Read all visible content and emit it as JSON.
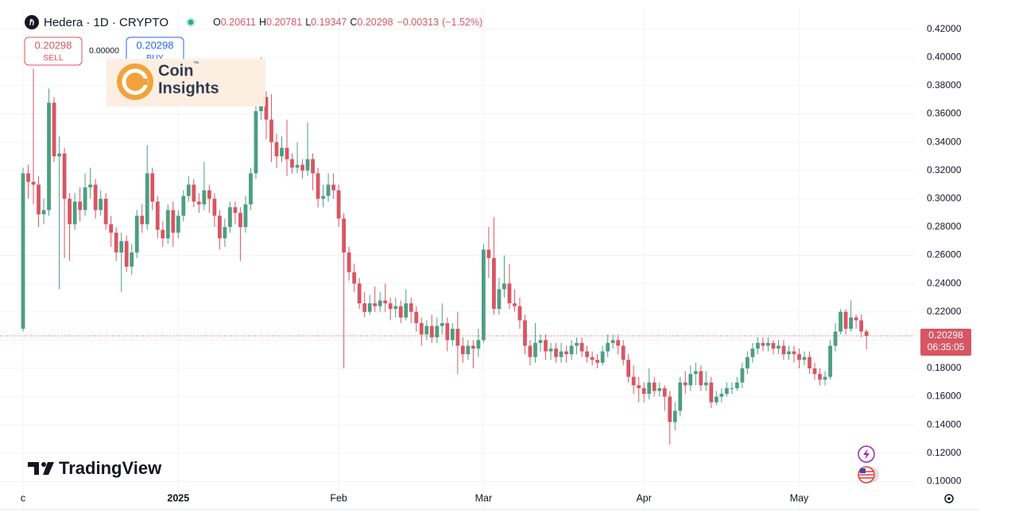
{
  "header": {
    "symbol": "Hedera · 1D · CRYPTO",
    "ohlc_labels": [
      "O",
      "H",
      "L",
      "C"
    ],
    "change": "−0.00313",
    "change_pct": "(−1.52%)"
  },
  "trade": {
    "sell": "SELL",
    "buy": "BUY",
    "spread": "0.00000"
  },
  "watermark": {
    "brand_line1": "Coin",
    "brand_line2": "Insights",
    "trademark": "™",
    "platform": "TradingView"
  },
  "chart_data": {
    "type": "candlestick",
    "categories": [
      "c",
      null,
      null,
      null,
      null,
      null,
      null,
      null,
      null,
      null,
      null,
      null,
      null,
      null,
      null,
      null,
      null,
      null,
      null,
      null,
      null,
      null,
      null,
      null,
      null,
      null,
      null,
      null,
      null,
      null,
      "2025",
      null,
      null,
      null,
      null,
      null,
      null,
      null,
      null,
      null,
      null,
      null,
      null,
      null,
      null,
      null,
      null,
      null,
      null,
      null,
      null,
      null,
      null,
      null,
      null,
      null,
      null,
      null,
      null,
      null,
      null,
      "Feb",
      null,
      null,
      null,
      null,
      null,
      null,
      null,
      null,
      null,
      null,
      null,
      null,
      null,
      null,
      null,
      null,
      null,
      null,
      null,
      null,
      null,
      null,
      null,
      null,
      null,
      null,
      null,
      "Mar",
      null,
      null,
      null,
      null,
      null,
      null,
      null,
      null,
      null,
      null,
      null,
      null,
      null,
      null,
      null,
      null,
      null,
      null,
      null,
      null,
      null,
      null,
      null,
      null,
      null,
      null,
      null,
      null,
      null,
      null,
      "Apr",
      null,
      null,
      null,
      null,
      null,
      null,
      null,
      null,
      null,
      null,
      null,
      null,
      null,
      null,
      null,
      null,
      null,
      null,
      null,
      null,
      null,
      null,
      null,
      null,
      null,
      null,
      null,
      null,
      null,
      "May",
      null,
      null,
      null,
      null,
      null,
      null,
      null,
      null,
      null,
      null,
      null,
      null,
      null
    ],
    "open": [
      0.208,
      0.318,
      0.312,
      0.31,
      0.289,
      0.292,
      0.368,
      0.33,
      0.332,
      0.3,
      0.282,
      0.298,
      0.292,
      0.308,
      0.31,
      0.292,
      0.3,
      0.282,
      0.276,
      0.262,
      0.27,
      0.252,
      0.262,
      0.288,
      0.282,
      0.318,
      0.298,
      0.278,
      0.272,
      0.292,
      0.276,
      0.288,
      0.302,
      0.31,
      0.298,
      0.296,
      0.306,
      0.3,
      0.288,
      0.272,
      0.28,
      0.294,
      0.29,
      0.28,
      0.296,
      0.318,
      0.362,
      0.372,
      0.356,
      0.34,
      0.33,
      0.336,
      0.328,
      0.322,
      0.324,
      0.32,
      0.328,
      0.318,
      0.3,
      0.302,
      0.31,
      0.306,
      0.286,
      0.262,
      0.248,
      0.24,
      0.226,
      0.22,
      0.226,
      0.224,
      0.228,
      0.226,
      0.222,
      0.224,
      0.216,
      0.226,
      0.22,
      0.212,
      0.204,
      0.21,
      0.202,
      0.21,
      0.212,
      0.2,
      0.208,
      0.196,
      0.19,
      0.196,
      0.194,
      0.2,
      0.264,
      0.258,
      0.222,
      0.236,
      0.24,
      0.226,
      0.224,
      0.214,
      0.196,
      0.188,
      0.198,
      0.2,
      0.192,
      0.194,
      0.188,
      0.192,
      0.19,
      0.196,
      0.198,
      0.192,
      0.188,
      0.186,
      0.184,
      0.192,
      0.198,
      0.2,
      0.196,
      0.186,
      0.174,
      0.168,
      0.166,
      0.162,
      0.17,
      0.164,
      0.166,
      0.16,
      0.142,
      0.15,
      0.17,
      0.168,
      0.176,
      0.178,
      0.168,
      0.17,
      0.156,
      0.16,
      0.162,
      0.166,
      0.166,
      0.17,
      0.18,
      0.188,
      0.194,
      0.198,
      0.196,
      0.198,
      0.194,
      0.196,
      0.19,
      0.192,
      0.19,
      0.186,
      0.188,
      0.18,
      0.176,
      0.172,
      0.174,
      0.196,
      0.206,
      0.22,
      0.208,
      0.216,
      0.214,
      0.20611
    ],
    "high": [
      0.322,
      0.324,
      0.392,
      0.316,
      0.3,
      0.378,
      0.372,
      0.344,
      0.336,
      0.304,
      0.304,
      0.308,
      0.318,
      0.322,
      0.314,
      0.306,
      0.304,
      0.288,
      0.28,
      0.276,
      0.274,
      0.268,
      0.292,
      0.296,
      0.338,
      0.322,
      0.302,
      0.284,
      0.296,
      0.298,
      0.292,
      0.306,
      0.316,
      0.314,
      0.304,
      0.326,
      0.31,
      0.304,
      0.292,
      0.286,
      0.298,
      0.298,
      0.294,
      0.302,
      0.322,
      0.366,
      0.4,
      0.376,
      0.374,
      0.346,
      0.344,
      0.356,
      0.332,
      0.34,
      0.328,
      0.354,
      0.332,
      0.322,
      0.31,
      0.318,
      0.318,
      0.31,
      0.29,
      0.266,
      0.254,
      0.244,
      0.234,
      0.232,
      0.238,
      0.234,
      0.24,
      0.23,
      0.23,
      0.228,
      0.236,
      0.23,
      0.224,
      0.216,
      0.214,
      0.218,
      0.216,
      0.226,
      0.216,
      0.212,
      0.22,
      0.202,
      0.2,
      0.2,
      0.208,
      0.268,
      0.28,
      0.287,
      0.244,
      0.26,
      0.254,
      0.236,
      0.23,
      0.218,
      0.2,
      0.212,
      0.204,
      0.204,
      0.198,
      0.198,
      0.198,
      0.196,
      0.2,
      0.202,
      0.202,
      0.196,
      0.192,
      0.19,
      0.196,
      0.204,
      0.204,
      0.204,
      0.2,
      0.19,
      0.182,
      0.174,
      0.17,
      0.18,
      0.174,
      0.17,
      0.168,
      0.164,
      0.156,
      0.174,
      0.178,
      0.182,
      0.184,
      0.182,
      0.178,
      0.174,
      0.164,
      0.166,
      0.17,
      0.17,
      0.174,
      0.184,
      0.192,
      0.198,
      0.202,
      0.202,
      0.202,
      0.2,
      0.2,
      0.2,
      0.196,
      0.196,
      0.194,
      0.192,
      0.192,
      0.184,
      0.18,
      0.178,
      0.2,
      0.212,
      0.222,
      0.222,
      0.228,
      0.218,
      0.218,
      0.20781
    ],
    "low": [
      0.206,
      0.3,
      0.296,
      0.28,
      0.282,
      0.288,
      0.326,
      0.236,
      0.258,
      0.256,
      0.278,
      0.284,
      0.288,
      0.3,
      0.286,
      0.288,
      0.278,
      0.266,
      0.256,
      0.234,
      0.248,
      0.246,
      0.258,
      0.276,
      0.278,
      0.292,
      0.272,
      0.266,
      0.268,
      0.266,
      0.272,
      0.284,
      0.298,
      0.294,
      0.29,
      0.292,
      0.29,
      0.28,
      0.264,
      0.266,
      0.276,
      0.282,
      0.256,
      0.276,
      0.292,
      0.314,
      0.356,
      0.342,
      0.326,
      0.322,
      0.326,
      0.316,
      0.318,
      0.318,
      0.314,
      0.316,
      0.306,
      0.294,
      0.294,
      0.298,
      0.3,
      0.28,
      0.18,
      0.242,
      0.234,
      0.222,
      0.216,
      0.218,
      0.22,
      0.22,
      0.22,
      0.214,
      0.216,
      0.212,
      0.214,
      0.212,
      0.206,
      0.196,
      0.2,
      0.198,
      0.198,
      0.204,
      0.192,
      0.196,
      0.176,
      0.184,
      0.186,
      0.18,
      0.188,
      0.198,
      0.244,
      0.218,
      0.218,
      0.23,
      0.222,
      0.22,
      0.208,
      0.19,
      0.182,
      0.184,
      0.192,
      0.186,
      0.186,
      0.184,
      0.184,
      0.184,
      0.186,
      0.19,
      0.188,
      0.184,
      0.182,
      0.18,
      0.182,
      0.188,
      0.194,
      0.19,
      0.182,
      0.17,
      0.162,
      0.156,
      0.156,
      0.158,
      0.16,
      0.16,
      0.15,
      0.126,
      0.136,
      0.146,
      0.162,
      0.164,
      0.168,
      0.164,
      0.164,
      0.152,
      0.154,
      0.156,
      0.16,
      0.162,
      0.164,
      0.166,
      0.176,
      0.184,
      0.19,
      0.192,
      0.192,
      0.19,
      0.19,
      0.186,
      0.186,
      0.184,
      0.18,
      0.182,
      0.176,
      0.172,
      0.168,
      0.168,
      0.172,
      0.192,
      0.204,
      0.204,
      0.206,
      0.208,
      0.202,
      0.19347
    ],
    "close": [
      0.318,
      0.312,
      0.31,
      0.289,
      0.292,
      0.368,
      0.33,
      0.332,
      0.3,
      0.282,
      0.298,
      0.292,
      0.308,
      0.31,
      0.292,
      0.3,
      0.282,
      0.276,
      0.262,
      0.27,
      0.252,
      0.262,
      0.288,
      0.282,
      0.318,
      0.298,
      0.278,
      0.272,
      0.292,
      0.276,
      0.288,
      0.302,
      0.31,
      0.298,
      0.296,
      0.306,
      0.3,
      0.288,
      0.272,
      0.28,
      0.294,
      0.29,
      0.28,
      0.296,
      0.318,
      0.362,
      0.372,
      0.356,
      0.34,
      0.33,
      0.336,
      0.328,
      0.322,
      0.324,
      0.32,
      0.328,
      0.318,
      0.3,
      0.302,
      0.31,
      0.306,
      0.286,
      0.262,
      0.248,
      0.24,
      0.226,
      0.22,
      0.226,
      0.224,
      0.228,
      0.226,
      0.222,
      0.224,
      0.216,
      0.226,
      0.22,
      0.212,
      0.204,
      0.21,
      0.202,
      0.21,
      0.212,
      0.2,
      0.208,
      0.196,
      0.19,
      0.196,
      0.194,
      0.2,
      0.264,
      0.258,
      0.222,
      0.236,
      0.24,
      0.226,
      0.224,
      0.214,
      0.196,
      0.188,
      0.198,
      0.2,
      0.192,
      0.194,
      0.188,
      0.192,
      0.19,
      0.196,
      0.198,
      0.192,
      0.188,
      0.186,
      0.184,
      0.192,
      0.198,
      0.2,
      0.196,
      0.186,
      0.174,
      0.168,
      0.166,
      0.162,
      0.17,
      0.164,
      0.166,
      0.16,
      0.142,
      0.15,
      0.17,
      0.168,
      0.176,
      0.178,
      0.168,
      0.17,
      0.156,
      0.16,
      0.162,
      0.166,
      0.166,
      0.17,
      0.18,
      0.188,
      0.194,
      0.198,
      0.196,
      0.198,
      0.194,
      0.196,
      0.19,
      0.192,
      0.19,
      0.186,
      0.188,
      0.18,
      0.176,
      0.172,
      0.174,
      0.196,
      0.206,
      0.22,
      0.208,
      0.216,
      0.214,
      0.20611,
      0.20298
    ],
    "up_color": "#4c9e82",
    "down_color": "#d75663",
    "ylim": [
      0.08,
      0.435
    ],
    "yticks": [
      {
        "value": 0.1,
        "label": "0.10000"
      },
      {
        "value": 0.12,
        "label": "0.12000"
      },
      {
        "value": 0.14,
        "label": "0.14000"
      },
      {
        "value": 0.16,
        "label": "0.16000"
      },
      {
        "value": 0.18,
        "label": "0.18000"
      },
      {
        "value": 0.2,
        "label": "0.20000"
      },
      {
        "value": 0.22,
        "label": "0.22000"
      },
      {
        "value": 0.24,
        "label": "0.24000"
      },
      {
        "value": 0.26,
        "label": "0.26000"
      },
      {
        "value": 0.28,
        "label": "0.28000"
      },
      {
        "value": 0.3,
        "label": "0.30000"
      },
      {
        "value": 0.32,
        "label": "0.32000"
      },
      {
        "value": 0.34,
        "label": "0.34000"
      },
      {
        "value": 0.36,
        "label": "0.36000"
      },
      {
        "value": 0.38,
        "label": "0.38000"
      },
      {
        "value": 0.4,
        "label": "0.40000"
      },
      {
        "value": 0.42,
        "label": "0.42000"
      }
    ],
    "grid": true,
    "countdown": "06:35:05"
  }
}
